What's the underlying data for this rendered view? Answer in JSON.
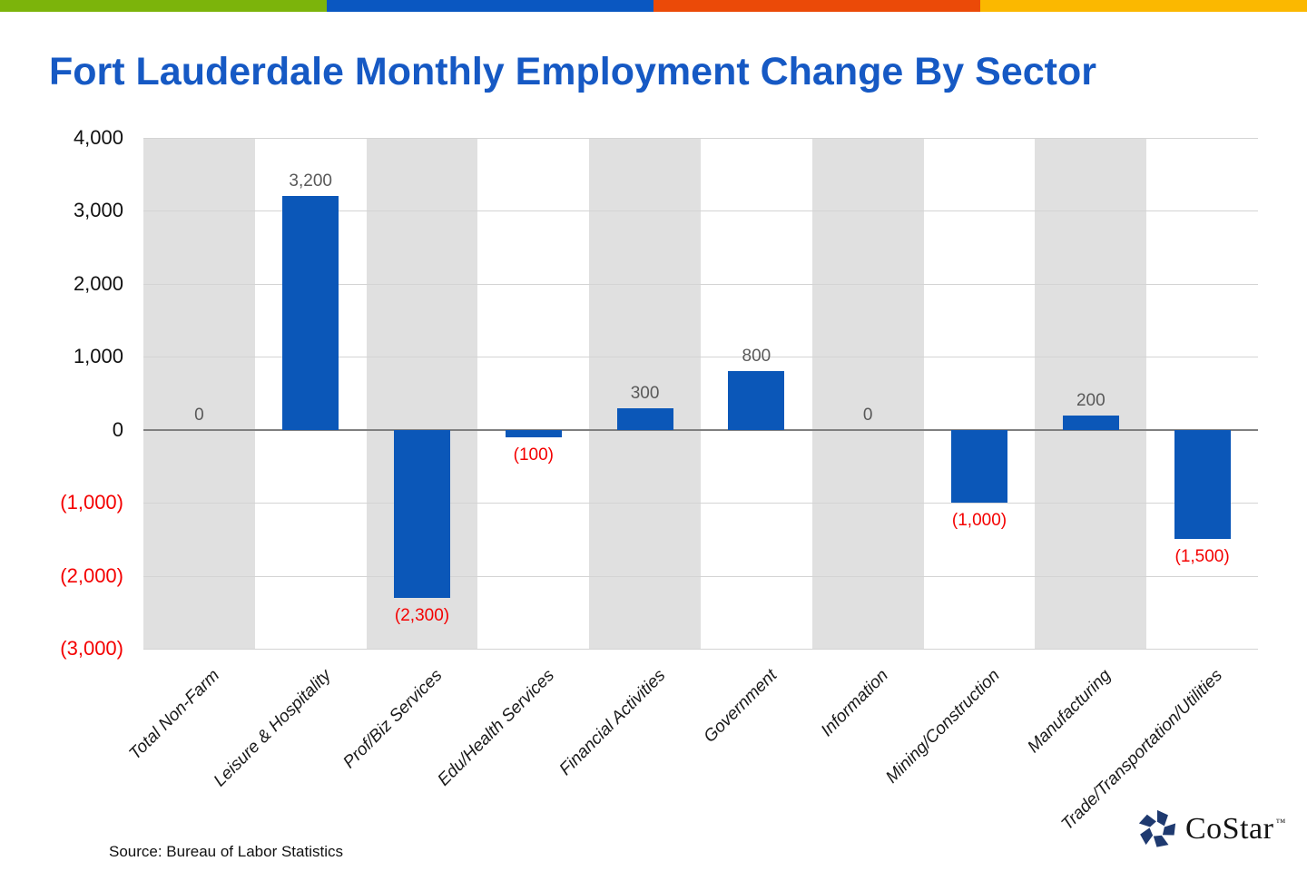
{
  "header": {
    "strip_colors": [
      "#7CB40B",
      "#0A57C1",
      "#EB4A08",
      "#FBB800"
    ]
  },
  "chart_data": {
    "type": "bar",
    "title": "Fort Lauderdale Monthly Employment Change By Sector",
    "title_color": "#1659C4",
    "categories": [
      "Total Non-Farm",
      "Leisure & Hospitality",
      "Prof/Biz Services",
      "Edu/Health Services",
      "Financial Activities",
      "Government",
      "Information",
      "Mining/Construction",
      "Manufacturing",
      "Trade/Transportation/Utilities"
    ],
    "values": [
      0,
      3200,
      -2300,
      -100,
      300,
      800,
      0,
      -1000,
      200,
      -1500
    ],
    "value_labels": [
      "0",
      "3,200",
      "(2,300)",
      "(100)",
      "300",
      "800",
      "0",
      "(1,000)",
      "200",
      "(1,500)"
    ],
    "ylim": [
      -3000,
      4000
    ],
    "ytick_step": 1000,
    "yticks": [
      {
        "value": 4000,
        "label": "4,000"
      },
      {
        "value": 3000,
        "label": "3,000"
      },
      {
        "value": 2000,
        "label": "2,000"
      },
      {
        "value": 1000,
        "label": "1,000"
      },
      {
        "value": 0,
        "label": "0"
      },
      {
        "value": -1000,
        "label": "(1,000)"
      },
      {
        "value": -2000,
        "label": "(2,000)"
      },
      {
        "value": -3000,
        "label": "(3,000)"
      }
    ],
    "xlabel": "",
    "ylabel": "",
    "grid": true,
    "legend_position": "none",
    "bar_color": "#0B57B8",
    "band_color": "#E0E0E0",
    "positive_label_color": "#595959",
    "negative_label_color": "#F40000",
    "axis_text_color": "#111111"
  },
  "footer": {
    "source": "Source: Bureau of Labor Statistics",
    "logo": {
      "text": "CoStar",
      "tm": "™",
      "icon_color": "#1F3A70"
    }
  }
}
